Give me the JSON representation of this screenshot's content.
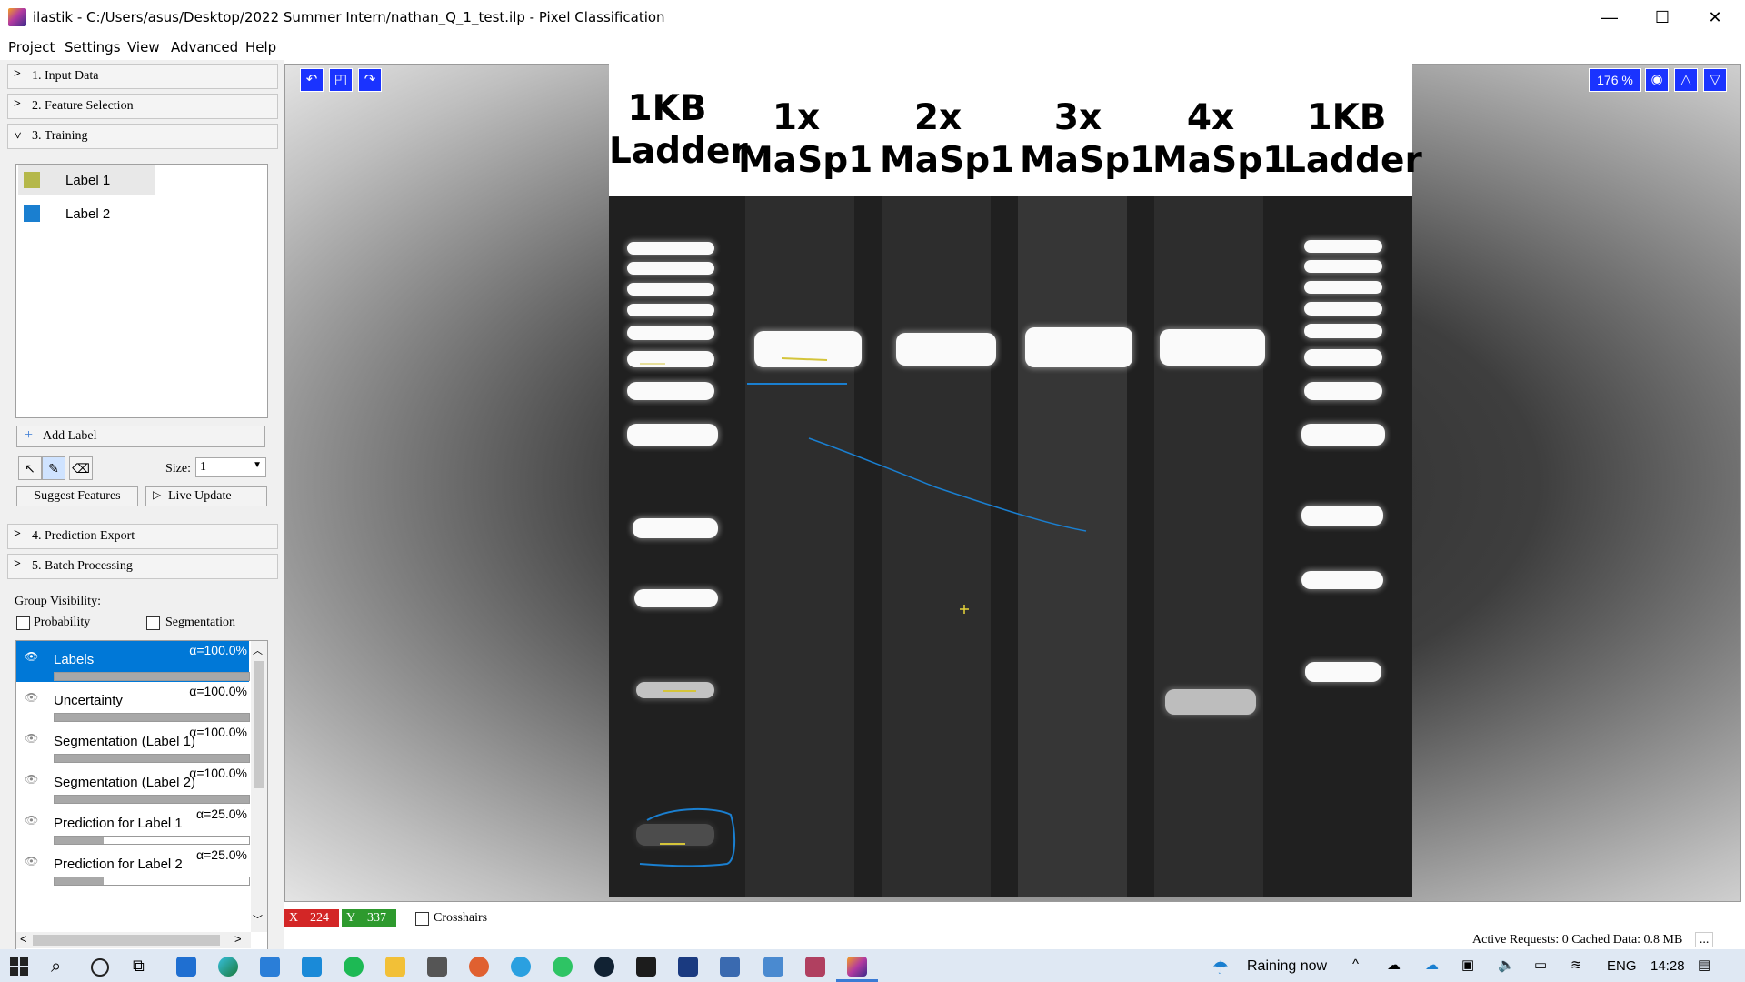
{
  "window": {
    "title": "ilastik - C:/Users/asus/Desktop/2022 Summer Intern/nathan_Q_1_test.ilp - Pixel Classification",
    "minimize": "—",
    "maximize": "☐",
    "close": "✕"
  },
  "menu": [
    "Project",
    "Settings",
    "View",
    "Advanced",
    "Help"
  ],
  "applets": {
    "input_data": "1. Input Data",
    "feature_selection": "2. Feature Selection",
    "training": "3. Training",
    "prediction_export": "4. Prediction Export",
    "batch_processing": "5. Batch Processing"
  },
  "labels": [
    {
      "name": "Label 1",
      "color": "#b5b84a"
    },
    {
      "name": "Label 2",
      "color": "#1a7fd0"
    }
  ],
  "training": {
    "add_label": "Add Label",
    "size_label": "Size:",
    "size_value": "1",
    "suggest_features": "Suggest Features",
    "live_update": "Live Update"
  },
  "visibility": {
    "heading": "Group Visibility:",
    "probability": "Probability",
    "segmentation": "Segmentation"
  },
  "layers": [
    {
      "name": "Labels",
      "alpha": "α=100.0%",
      "opacity": 1.0,
      "selected": true
    },
    {
      "name": "Uncertainty",
      "alpha": "α=100.0%",
      "opacity": 1.0,
      "selected": false
    },
    {
      "name": "Segmentation (Label 1)",
      "alpha": "α=100.0%",
      "opacity": 1.0,
      "selected": false
    },
    {
      "name": "Segmentation (Label 2)",
      "alpha": "α=100.0%",
      "opacity": 1.0,
      "selected": false
    },
    {
      "name": "Prediction for Label 1",
      "alpha": "α=25.0%",
      "opacity": 0.25,
      "selected": false
    },
    {
      "name": "Prediction for Label 2",
      "alpha": "α=25.0%",
      "opacity": 0.25,
      "selected": false
    }
  ],
  "viewer": {
    "zoom": "176 %",
    "lanes": [
      {
        "line1": "1KB",
        "line2": "Ladder"
      },
      {
        "line1": "1x",
        "line2": "MaSp1"
      },
      {
        "line1": "2x",
        "line2": "MaSp1"
      },
      {
        "line1": "3x",
        "line2": "MaSp1"
      },
      {
        "line1": "4x",
        "line2": "MaSp1"
      },
      {
        "line1": "1KB",
        "line2": "Ladder"
      }
    ]
  },
  "coords": {
    "x_label": "X",
    "x_value": "224",
    "y_label": "Y",
    "y_value": "337",
    "crosshairs": "Crosshairs"
  },
  "status": {
    "text": "Active Requests: 0 Cached Data: 0.8 MB",
    "more": "..."
  },
  "taskbar": {
    "weather": "Raining now",
    "language": "ENG",
    "time": "14:28"
  }
}
